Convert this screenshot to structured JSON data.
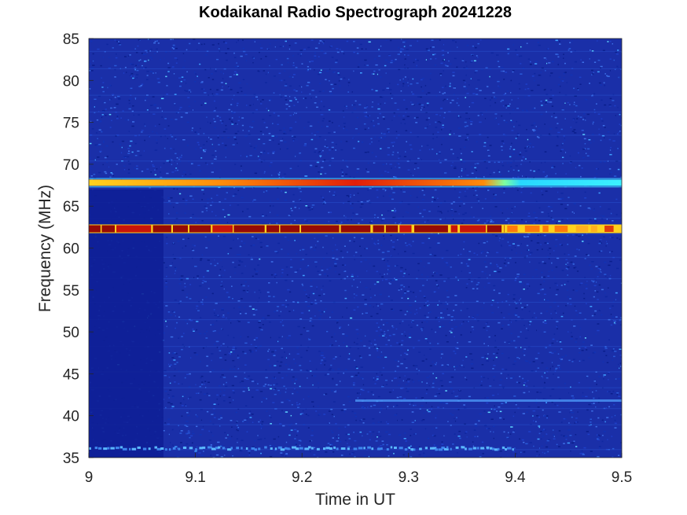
{
  "chart_data": {
    "type": "heatmap",
    "title": "Kodaikanal Radio Spectrograph  20241228",
    "xlabel": "Time in UT",
    "ylabel": "Frequency (MHz)",
    "xlim": [
      9,
      9.5
    ],
    "ylim": [
      35,
      85
    ],
    "x_ticks": [
      "9",
      "9.1",
      "9.2",
      "9.3",
      "9.4",
      "9.5"
    ],
    "y_ticks": [
      "35",
      "40",
      "45",
      "50",
      "55",
      "60",
      "65",
      "70",
      "75",
      "80",
      "85"
    ],
    "colormap": "jet",
    "background_color": "#1a2fa8",
    "features": [
      {
        "label": "emission band",
        "frequency_mhz": 67.8,
        "time_start": 9.0,
        "time_end": 9.5,
        "intensity": "high (red/yellow) until ~9.39 UT, moderate (cyan) after"
      },
      {
        "label": "emission band",
        "frequency_mhz": 62.3,
        "time_start": 9.0,
        "time_end": 9.5,
        "intensity": "very high (dark red) with periodic gaps; weaker after ~9.39 UT"
      },
      {
        "label": "weak band",
        "frequency_mhz": 41.8,
        "time_start": 9.25,
        "time_end": 9.5,
        "intensity": "low (light blue)"
      },
      {
        "label": "weak band",
        "frequency_mhz": 36.0,
        "time_start": 9.0,
        "time_end": 9.4,
        "intensity": "low, speckled (light blue)"
      },
      {
        "label": "low-signal region",
        "frequency_range_mhz": [
          35,
          67
        ],
        "time_start": 9.0,
        "time_end": 9.07,
        "intensity": "very low (dark navy)"
      }
    ]
  }
}
